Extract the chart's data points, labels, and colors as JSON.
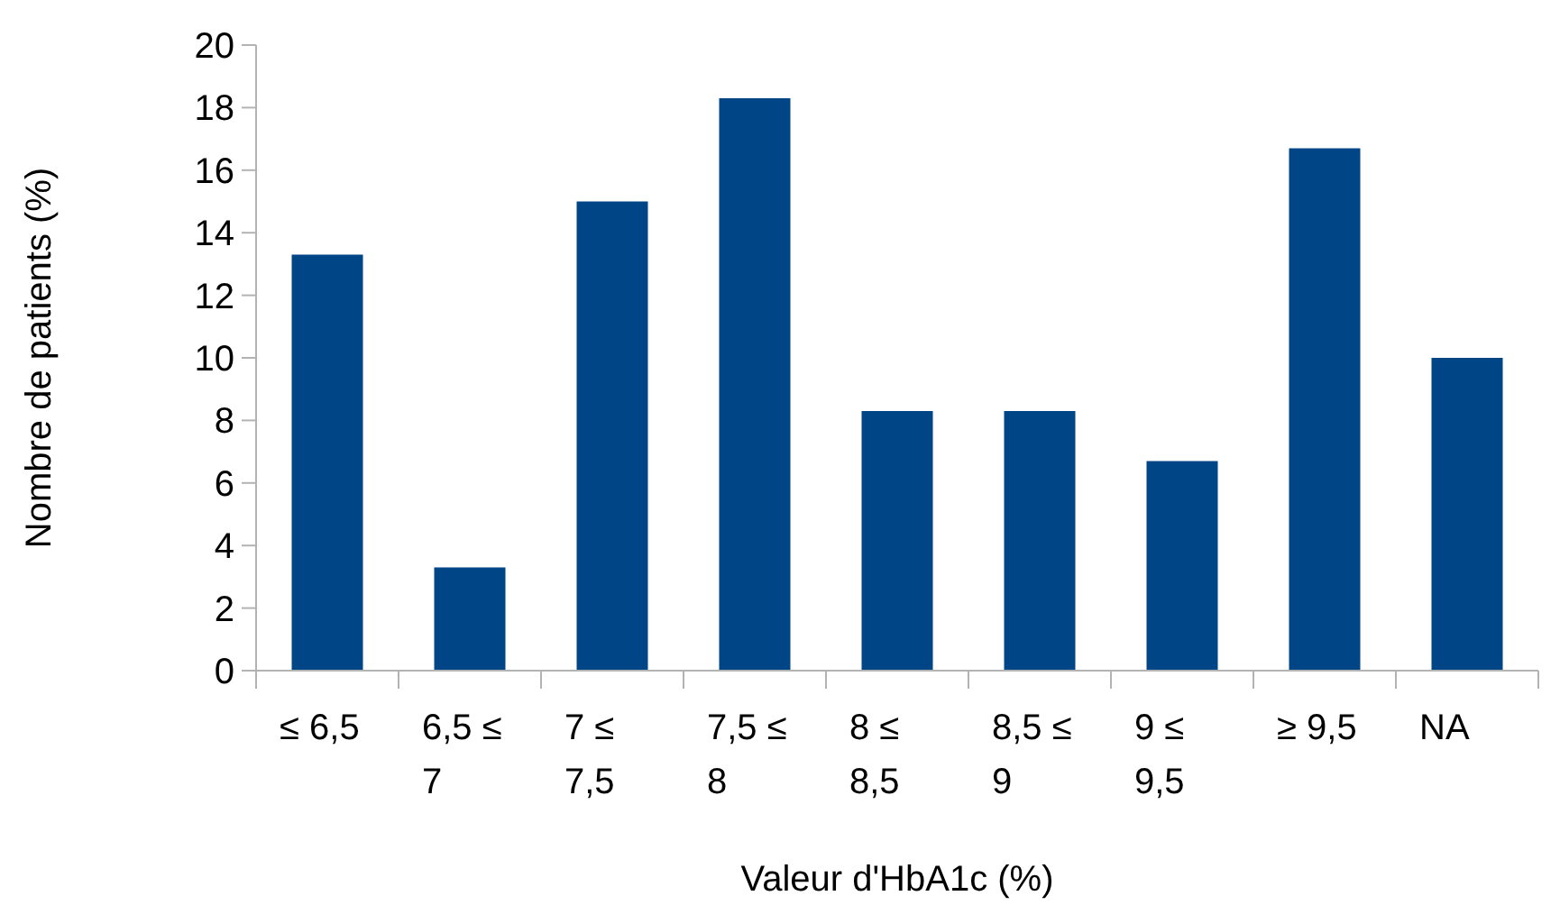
{
  "chart_data": {
    "type": "bar",
    "xlabel": "Valeur d'HbA1c (%)",
    "ylabel": "Nombre de patients (%)",
    "categories": [
      "≤ 6,5",
      "6,5 ≤ 7",
      "7 ≤ 7,5",
      "7,5 ≤ 8",
      "8 ≤ 8,5",
      "8,5 ≤ 9",
      "9 ≤ 9,5",
      "≥ 9,5",
      "NA"
    ],
    "values": [
      13.3,
      3.3,
      15,
      18.3,
      8.3,
      8.3,
      6.7,
      16.7,
      10
    ],
    "color": "#004586",
    "ylim": [
      0,
      20
    ],
    "yticks": [
      0,
      2,
      4,
      6,
      8,
      10,
      12,
      14,
      16,
      18,
      20
    ],
    "grid": false
  }
}
